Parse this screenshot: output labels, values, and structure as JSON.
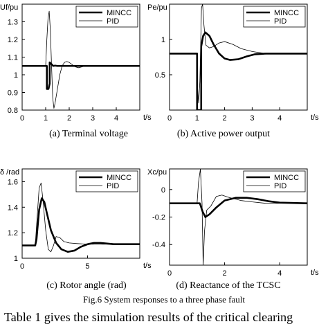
{
  "figure": {
    "caption": "Fig.6   System responses to a three phase fault",
    "following_text": "Table 1 gives the simulation results of the critical clearing"
  },
  "chart_data": [
    {
      "type": "line",
      "panel_caption": "(a) Terminal voltage",
      "ylabel": "Uf/pu",
      "xlabel": "t/s",
      "xlim": [
        0,
        5
      ],
      "ylim": [
        0.8,
        1.4
      ],
      "xticks": [
        0,
        1,
        2,
        3,
        4
      ],
      "yticks": [
        0.8,
        0.9,
        1.0,
        1.1,
        1.2,
        1.3
      ],
      "xtick_labels": [
        "0",
        "1",
        "2",
        "3",
        "4"
      ],
      "ytick_labels": [
        "0.8",
        "0.9",
        "1",
        "1.1",
        "1.2",
        "1.3"
      ],
      "legend_position": "top-right",
      "series": [
        {
          "name": "MINCC",
          "style": "thick",
          "x": [
            0,
            1.05,
            1.05,
            1.12,
            1.17,
            1.17,
            1.25,
            1.32,
            1.4,
            1.5,
            5
          ],
          "y": [
            1.05,
            1.05,
            0.92,
            0.92,
            0.95,
            1.07,
            1.06,
            1.05,
            1.052,
            1.05,
            1.05
          ]
        },
        {
          "name": "PID",
          "style": "thin",
          "x": [
            0,
            1.0,
            1.05,
            1.1,
            1.15,
            1.2,
            1.25,
            1.3,
            1.35,
            1.4,
            1.5,
            1.6,
            1.7,
            1.8,
            1.9,
            2.0,
            2.1,
            2.25,
            2.4,
            2.55,
            2.7,
            2.85,
            3.0,
            3.3,
            5
          ],
          "y": [
            1.05,
            1.05,
            1.2,
            1.32,
            1.36,
            1.25,
            1.05,
            0.87,
            0.81,
            0.84,
            0.92,
            1.0,
            1.05,
            1.07,
            1.075,
            1.07,
            1.06,
            1.045,
            1.04,
            1.045,
            1.05,
            1.052,
            1.05,
            1.05,
            1.05
          ]
        }
      ]
    },
    {
      "type": "line",
      "panel_caption": "(b) Active power output",
      "ylabel": "Pe/pu",
      "xlabel": "t/s",
      "xlim": [
        0,
        5
      ],
      "ylim": [
        0,
        1.5
      ],
      "xticks": [
        0,
        1,
        2,
        3,
        4
      ],
      "yticks": [
        0.5,
        1.0
      ],
      "xtick_labels": [
        "0",
        "1",
        "2",
        "3",
        "4"
      ],
      "ytick_labels": [
        "0.5",
        "1"
      ],
      "legend_position": "top-right",
      "series": [
        {
          "name": "MINCC",
          "style": "thick",
          "x": [
            0,
            1.0,
            1.0,
            1.15,
            1.15,
            1.22,
            1.3,
            1.45,
            1.6,
            1.8,
            2.0,
            2.2,
            2.5,
            2.8,
            3.1,
            3.5,
            4.0,
            5
          ],
          "y": [
            0.8,
            0.8,
            0.0,
            0.0,
            0.9,
            1.05,
            1.1,
            1.05,
            0.93,
            0.8,
            0.73,
            0.71,
            0.72,
            0.76,
            0.79,
            0.8,
            0.8,
            0.8
          ]
        },
        {
          "name": "PID",
          "style": "thin",
          "x": [
            0,
            1.0,
            1.02,
            1.06,
            1.1,
            1.16,
            1.2,
            1.25,
            1.32,
            1.45,
            1.6,
            1.8,
            2.0,
            2.3,
            2.6,
            3.0,
            3.5,
            4.0,
            5
          ],
          "y": [
            0.8,
            0.8,
            0.3,
            0.1,
            0.4,
            1.45,
            1.5,
            1.2,
            0.92,
            0.88,
            0.9,
            0.95,
            0.97,
            0.93,
            0.87,
            0.83,
            0.8,
            0.8,
            0.8
          ]
        }
      ]
    },
    {
      "type": "line",
      "panel_caption": "(c) Rotor angle (rad)",
      "ylabel": "δ /rad",
      "xlabel": "t/s",
      "xlim": [
        0,
        9
      ],
      "ylim": [
        1.0,
        1.7
      ],
      "xticks": [
        0,
        5
      ],
      "yticks": [
        1.0,
        1.2,
        1.4,
        1.6
      ],
      "xtick_labels": [
        "0",
        "5"
      ],
      "ytick_labels": [
        "1",
        "1.2",
        "1.4",
        "1.6"
      ],
      "legend_position": "top-right",
      "series": [
        {
          "name": "MINCC",
          "style": "thick",
          "x": [
            0,
            1.0,
            1.1,
            1.3,
            1.5,
            1.7,
            1.9,
            2.2,
            2.6,
            3.0,
            3.5,
            4.0,
            4.5,
            5.0,
            5.5,
            6.0,
            6.5,
            7.0,
            9.0
          ],
          "y": [
            1.1,
            1.1,
            1.15,
            1.38,
            1.47,
            1.44,
            1.35,
            1.22,
            1.12,
            1.07,
            1.05,
            1.06,
            1.09,
            1.11,
            1.12,
            1.12,
            1.115,
            1.11,
            1.11
          ]
        },
        {
          "name": "PID",
          "style": "thin",
          "x": [
            0,
            1.0,
            1.1,
            1.3,
            1.45,
            1.6,
            1.8,
            2.0,
            2.2,
            2.4,
            2.6,
            2.9,
            3.2,
            3.6,
            4.2,
            5.0,
            9.0
          ],
          "y": [
            1.1,
            1.1,
            1.25,
            1.55,
            1.59,
            1.45,
            1.22,
            1.07,
            1.05,
            1.1,
            1.17,
            1.16,
            1.13,
            1.12,
            1.115,
            1.11,
            1.11
          ]
        }
      ]
    },
    {
      "type": "line",
      "panel_caption": "(d) Reactance of the TCSC",
      "ylabel": "Xc/pu",
      "xlabel": "t/s",
      "xlim": [
        0,
        5
      ],
      "ylim": [
        -0.55,
        0.15
      ],
      "xticks": [
        0,
        2,
        4
      ],
      "yticks": [
        0,
        -0.2,
        -0.4
      ],
      "xtick_labels": [
        "0",
        "2",
        "4"
      ],
      "ytick_labels": [
        "0",
        "-0.2",
        "-0.4"
      ],
      "legend_position": "top-right",
      "series": [
        {
          "name": "MINCC",
          "style": "thick",
          "x": [
            0,
            1.1,
            1.2,
            1.3,
            1.45,
            1.7,
            2.0,
            2.4,
            2.8,
            3.2,
            3.6,
            4.0,
            5.0
          ],
          "y": [
            -0.1,
            -0.1,
            -0.16,
            -0.2,
            -0.18,
            -0.13,
            -0.08,
            -0.06,
            -0.06,
            -0.07,
            -0.085,
            -0.095,
            -0.1
          ]
        },
        {
          "name": "PID",
          "style": "thin",
          "x": [
            0,
            1.0,
            1.05,
            1.12,
            1.18,
            1.22,
            1.27,
            1.35,
            1.5,
            1.7,
            1.9,
            2.2,
            2.6,
            3.0,
            3.5,
            4.0,
            5.0
          ],
          "y": [
            -0.1,
            -0.1,
            0.05,
            0.15,
            -0.1,
            -0.55,
            -0.3,
            -0.15,
            -0.12,
            -0.05,
            -0.04,
            -0.06,
            -0.08,
            -0.09,
            -0.1,
            -0.1,
            -0.1
          ]
        }
      ]
    }
  ]
}
